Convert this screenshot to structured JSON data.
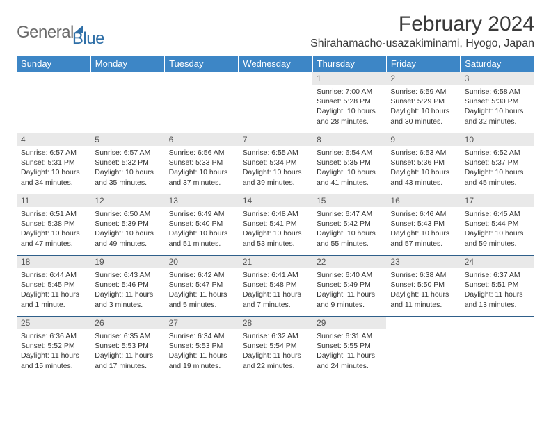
{
  "brand": {
    "name_part1": "General",
    "name_part2": "Blue"
  },
  "title": "February 2024",
  "location": "Shirahamacho-usazakiminami, Hyogo, Japan",
  "colors": {
    "header_bg": "#3d86c6",
    "header_text": "#ffffff",
    "row_border": "#2f5f8a",
    "daynum_bg": "#e9e9e9",
    "body_text": "#333333",
    "logo_gray": "#6b6b6b",
    "logo_blue": "#2f6fa7",
    "page_bg": "#ffffff"
  },
  "typography": {
    "month_title_size_pt": 22,
    "location_size_pt": 12,
    "weekday_size_pt": 10,
    "daynum_size_pt": 9,
    "detail_size_pt": 8
  },
  "layout": {
    "columns": 7,
    "rows": 5,
    "first_weekday_index": 4
  },
  "weekdays": [
    "Sunday",
    "Monday",
    "Tuesday",
    "Wednesday",
    "Thursday",
    "Friday",
    "Saturday"
  ],
  "days": [
    {
      "n": 1,
      "sunrise": "7:00 AM",
      "sunset": "5:28 PM",
      "daylight": "10 hours and 28 minutes."
    },
    {
      "n": 2,
      "sunrise": "6:59 AM",
      "sunset": "5:29 PM",
      "daylight": "10 hours and 30 minutes."
    },
    {
      "n": 3,
      "sunrise": "6:58 AM",
      "sunset": "5:30 PM",
      "daylight": "10 hours and 32 minutes."
    },
    {
      "n": 4,
      "sunrise": "6:57 AM",
      "sunset": "5:31 PM",
      "daylight": "10 hours and 34 minutes."
    },
    {
      "n": 5,
      "sunrise": "6:57 AM",
      "sunset": "5:32 PM",
      "daylight": "10 hours and 35 minutes."
    },
    {
      "n": 6,
      "sunrise": "6:56 AM",
      "sunset": "5:33 PM",
      "daylight": "10 hours and 37 minutes."
    },
    {
      "n": 7,
      "sunrise": "6:55 AM",
      "sunset": "5:34 PM",
      "daylight": "10 hours and 39 minutes."
    },
    {
      "n": 8,
      "sunrise": "6:54 AM",
      "sunset": "5:35 PM",
      "daylight": "10 hours and 41 minutes."
    },
    {
      "n": 9,
      "sunrise": "6:53 AM",
      "sunset": "5:36 PM",
      "daylight": "10 hours and 43 minutes."
    },
    {
      "n": 10,
      "sunrise": "6:52 AM",
      "sunset": "5:37 PM",
      "daylight": "10 hours and 45 minutes."
    },
    {
      "n": 11,
      "sunrise": "6:51 AM",
      "sunset": "5:38 PM",
      "daylight": "10 hours and 47 minutes."
    },
    {
      "n": 12,
      "sunrise": "6:50 AM",
      "sunset": "5:39 PM",
      "daylight": "10 hours and 49 minutes."
    },
    {
      "n": 13,
      "sunrise": "6:49 AM",
      "sunset": "5:40 PM",
      "daylight": "10 hours and 51 minutes."
    },
    {
      "n": 14,
      "sunrise": "6:48 AM",
      "sunset": "5:41 PM",
      "daylight": "10 hours and 53 minutes."
    },
    {
      "n": 15,
      "sunrise": "6:47 AM",
      "sunset": "5:42 PM",
      "daylight": "10 hours and 55 minutes."
    },
    {
      "n": 16,
      "sunrise": "6:46 AM",
      "sunset": "5:43 PM",
      "daylight": "10 hours and 57 minutes."
    },
    {
      "n": 17,
      "sunrise": "6:45 AM",
      "sunset": "5:44 PM",
      "daylight": "10 hours and 59 minutes."
    },
    {
      "n": 18,
      "sunrise": "6:44 AM",
      "sunset": "5:45 PM",
      "daylight": "11 hours and 1 minute."
    },
    {
      "n": 19,
      "sunrise": "6:43 AM",
      "sunset": "5:46 PM",
      "daylight": "11 hours and 3 minutes."
    },
    {
      "n": 20,
      "sunrise": "6:42 AM",
      "sunset": "5:47 PM",
      "daylight": "11 hours and 5 minutes."
    },
    {
      "n": 21,
      "sunrise": "6:41 AM",
      "sunset": "5:48 PM",
      "daylight": "11 hours and 7 minutes."
    },
    {
      "n": 22,
      "sunrise": "6:40 AM",
      "sunset": "5:49 PM",
      "daylight": "11 hours and 9 minutes."
    },
    {
      "n": 23,
      "sunrise": "6:38 AM",
      "sunset": "5:50 PM",
      "daylight": "11 hours and 11 minutes."
    },
    {
      "n": 24,
      "sunrise": "6:37 AM",
      "sunset": "5:51 PM",
      "daylight": "11 hours and 13 minutes."
    },
    {
      "n": 25,
      "sunrise": "6:36 AM",
      "sunset": "5:52 PM",
      "daylight": "11 hours and 15 minutes."
    },
    {
      "n": 26,
      "sunrise": "6:35 AM",
      "sunset": "5:53 PM",
      "daylight": "11 hours and 17 minutes."
    },
    {
      "n": 27,
      "sunrise": "6:34 AM",
      "sunset": "5:53 PM",
      "daylight": "11 hours and 19 minutes."
    },
    {
      "n": 28,
      "sunrise": "6:32 AM",
      "sunset": "5:54 PM",
      "daylight": "11 hours and 22 minutes."
    },
    {
      "n": 29,
      "sunrise": "6:31 AM",
      "sunset": "5:55 PM",
      "daylight": "11 hours and 24 minutes."
    }
  ],
  "labels": {
    "sunrise": "Sunrise:",
    "sunset": "Sunset:",
    "daylight": "Daylight:"
  }
}
